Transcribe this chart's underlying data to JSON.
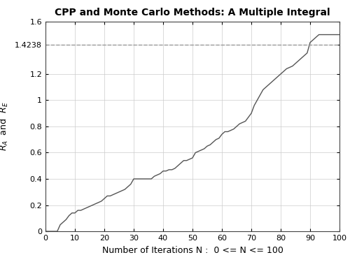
{
  "title": "CPP and Monte Carlo Methods: A Multiple Integral",
  "xlabel": "Number of Iterations N :  0 <= N <= 100",
  "ylabel": "R$_A$ and R$_E$",
  "xlim": [
    0,
    100
  ],
  "ylim": [
    0,
    1.6
  ],
  "xticks": [
    0,
    10,
    20,
    30,
    40,
    50,
    60,
    70,
    80,
    90,
    100
  ],
  "yticks": [
    0,
    0.2,
    0.4,
    0.6,
    0.8,
    1.0,
    1.2,
    1.4238,
    1.6
  ],
  "ytick_labels": [
    "0",
    "0.2",
    "0.4",
    "0.6",
    "0.8",
    "1",
    "1.2",
    "1.4238",
    "1.6"
  ],
  "hline_y": 1.4238,
  "hline_color": "#999999",
  "hline_style": "--",
  "line_color": "#555555",
  "line_width": 1.0,
  "grid_color": "#cccccc",
  "background_color": "#ffffff",
  "x_values": [
    0,
    1,
    2,
    3,
    4,
    5,
    6,
    7,
    8,
    9,
    10,
    11,
    12,
    13,
    14,
    15,
    16,
    17,
    18,
    19,
    20,
    21,
    22,
    23,
    24,
    25,
    26,
    27,
    28,
    29,
    30,
    31,
    32,
    33,
    34,
    35,
    36,
    37,
    38,
    39,
    40,
    41,
    42,
    43,
    44,
    45,
    46,
    47,
    48,
    49,
    50,
    51,
    52,
    53,
    54,
    55,
    56,
    57,
    58,
    59,
    60,
    61,
    62,
    63,
    64,
    65,
    66,
    67,
    68,
    69,
    70,
    71,
    72,
    73,
    74,
    75,
    76,
    77,
    78,
    79,
    80,
    81,
    82,
    83,
    84,
    85,
    86,
    87,
    88,
    89,
    90,
    91,
    92,
    93,
    94,
    95,
    96,
    97,
    98,
    99,
    100
  ],
  "y_values": [
    0.0,
    0.0,
    0.0,
    0.0,
    0.0,
    0.05,
    0.07,
    0.09,
    0.12,
    0.14,
    0.14,
    0.16,
    0.16,
    0.17,
    0.18,
    0.19,
    0.2,
    0.21,
    0.22,
    0.23,
    0.25,
    0.27,
    0.27,
    0.28,
    0.29,
    0.3,
    0.31,
    0.32,
    0.34,
    0.36,
    0.4,
    0.4,
    0.4,
    0.4,
    0.4,
    0.4,
    0.4,
    0.42,
    0.43,
    0.44,
    0.46,
    0.46,
    0.47,
    0.47,
    0.48,
    0.5,
    0.52,
    0.54,
    0.54,
    0.55,
    0.56,
    0.6,
    0.61,
    0.62,
    0.63,
    0.65,
    0.66,
    0.68,
    0.7,
    0.71,
    0.74,
    0.76,
    0.76,
    0.77,
    0.78,
    0.8,
    0.82,
    0.83,
    0.84,
    0.87,
    0.9,
    0.96,
    1.0,
    1.04,
    1.08,
    1.1,
    1.12,
    1.14,
    1.16,
    1.18,
    1.2,
    1.22,
    1.24,
    1.25,
    1.26,
    1.28,
    1.3,
    1.32,
    1.34,
    1.36,
    1.44,
    1.46,
    1.48,
    1.5,
    1.5,
    1.5,
    1.5,
    1.5,
    1.5,
    1.5,
    1.5
  ]
}
